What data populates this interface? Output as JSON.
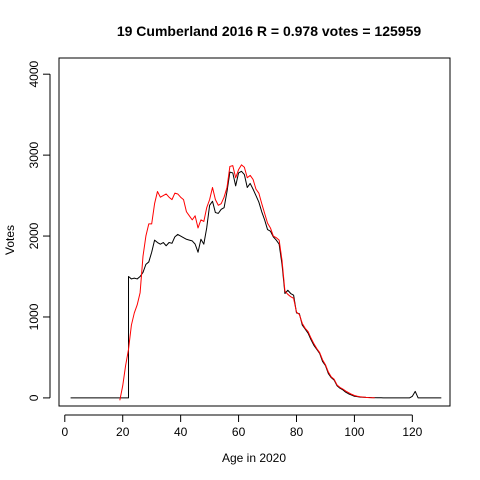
{
  "chart_data": {
    "type": "line",
    "title": "19 Cumberland 2016 R = 0.978 votes = 125959",
    "xlabel": "Age in 2020",
    "ylabel": "Votes",
    "xlim": [
      -2,
      133
    ],
    "ylim": [
      -100,
      4200
    ],
    "x_ticks": [
      0,
      20,
      40,
      60,
      80,
      100,
      120
    ],
    "y_ticks": [
      0,
      1000,
      2000,
      3000,
      4000
    ],
    "grid": false,
    "legend": "none",
    "series": [
      {
        "color": "#000000",
        "points": [
          [
            2,
            0
          ],
          [
            10,
            0
          ],
          [
            18,
            0
          ],
          [
            20,
            0
          ],
          [
            21,
            0
          ],
          [
            22,
            0
          ],
          [
            22,
            1500
          ],
          [
            23,
            1470
          ],
          [
            24,
            1480
          ],
          [
            25,
            1470
          ],
          [
            26,
            1500
          ],
          [
            27,
            1550
          ],
          [
            28,
            1650
          ],
          [
            29,
            1680
          ],
          [
            30,
            1800
          ],
          [
            31,
            1950
          ],
          [
            32,
            1920
          ],
          [
            33,
            1900
          ],
          [
            34,
            1920
          ],
          [
            35,
            1880
          ],
          [
            36,
            1920
          ],
          [
            37,
            1910
          ],
          [
            38,
            1990
          ],
          [
            39,
            2020
          ],
          [
            40,
            2000
          ],
          [
            41,
            1980
          ],
          [
            42,
            1960
          ],
          [
            43,
            1950
          ],
          [
            44,
            1940
          ],
          [
            45,
            1900
          ],
          [
            46,
            1800
          ],
          [
            47,
            1960
          ],
          [
            48,
            1900
          ],
          [
            49,
            2100
          ],
          [
            50,
            2380
          ],
          [
            51,
            2430
          ],
          [
            52,
            2290
          ],
          [
            53,
            2280
          ],
          [
            54,
            2330
          ],
          [
            55,
            2350
          ],
          [
            56,
            2550
          ],
          [
            57,
            2790
          ],
          [
            58,
            2780
          ],
          [
            59,
            2620
          ],
          [
            60,
            2780
          ],
          [
            61,
            2800
          ],
          [
            62,
            2760
          ],
          [
            63,
            2600
          ],
          [
            64,
            2650
          ],
          [
            65,
            2580
          ],
          [
            66,
            2500
          ],
          [
            67,
            2420
          ],
          [
            68,
            2300
          ],
          [
            69,
            2200
          ],
          [
            70,
            2080
          ],
          [
            71,
            2060
          ],
          [
            72,
            1990
          ],
          [
            73,
            1950
          ],
          [
            74,
            1900
          ],
          [
            75,
            1650
          ],
          [
            76,
            1290
          ],
          [
            77,
            1330
          ],
          [
            78,
            1290
          ],
          [
            79,
            1270
          ],
          [
            80,
            1050
          ],
          [
            81,
            1040
          ],
          [
            82,
            900
          ],
          [
            83,
            850
          ],
          [
            84,
            800
          ],
          [
            85,
            720
          ],
          [
            86,
            650
          ],
          [
            87,
            600
          ],
          [
            88,
            550
          ],
          [
            89,
            450
          ],
          [
            90,
            400
          ],
          [
            91,
            300
          ],
          [
            92,
            250
          ],
          [
            93,
            220
          ],
          [
            94,
            150
          ],
          [
            95,
            120
          ],
          [
            96,
            100
          ],
          [
            97,
            70
          ],
          [
            98,
            50
          ],
          [
            99,
            35
          ],
          [
            100,
            20
          ],
          [
            101,
            15
          ],
          [
            102,
            10
          ],
          [
            103,
            8
          ],
          [
            104,
            6
          ],
          [
            105,
            5
          ],
          [
            106,
            3
          ],
          [
            108,
            2
          ],
          [
            110,
            1
          ],
          [
            115,
            0
          ],
          [
            119,
            0
          ],
          [
            120,
            20
          ],
          [
            121,
            80
          ],
          [
            122,
            0
          ],
          [
            125,
            0
          ],
          [
            130,
            0
          ]
        ]
      },
      {
        "color": "#ff0000",
        "points": [
          [
            19,
            -30
          ],
          [
            20,
            150
          ],
          [
            21,
            400
          ],
          [
            22,
            600
          ],
          [
            23,
            900
          ],
          [
            24,
            1050
          ],
          [
            25,
            1150
          ],
          [
            26,
            1300
          ],
          [
            27,
            1750
          ],
          [
            28,
            2000
          ],
          [
            29,
            2150
          ],
          [
            30,
            2150
          ],
          [
            31,
            2400
          ],
          [
            32,
            2550
          ],
          [
            33,
            2480
          ],
          [
            34,
            2500
          ],
          [
            35,
            2520
          ],
          [
            36,
            2480
          ],
          [
            37,
            2450
          ],
          [
            38,
            2530
          ],
          [
            39,
            2520
          ],
          [
            40,
            2480
          ],
          [
            41,
            2450
          ],
          [
            42,
            2300
          ],
          [
            43,
            2250
          ],
          [
            44,
            2200
          ],
          [
            45,
            2250
          ],
          [
            46,
            2100
          ],
          [
            47,
            2200
          ],
          [
            48,
            2180
          ],
          [
            49,
            2350
          ],
          [
            50,
            2450
          ],
          [
            51,
            2600
          ],
          [
            52,
            2450
          ],
          [
            53,
            2380
          ],
          [
            54,
            2400
          ],
          [
            55,
            2480
          ],
          [
            56,
            2600
          ],
          [
            57,
            2860
          ],
          [
            58,
            2870
          ],
          [
            59,
            2720
          ],
          [
            60,
            2820
          ],
          [
            61,
            2880
          ],
          [
            62,
            2850
          ],
          [
            63,
            2720
          ],
          [
            64,
            2750
          ],
          [
            65,
            2700
          ],
          [
            66,
            2580
          ],
          [
            67,
            2530
          ],
          [
            68,
            2400
          ],
          [
            69,
            2280
          ],
          [
            70,
            2160
          ],
          [
            71,
            2100
          ],
          [
            72,
            2000
          ],
          [
            73,
            1980
          ],
          [
            74,
            1950
          ],
          [
            75,
            1700
          ],
          [
            76,
            1320
          ],
          [
            77,
            1280
          ],
          [
            78,
            1250
          ],
          [
            79,
            1230
          ],
          [
            80,
            1060
          ],
          [
            81,
            1030
          ],
          [
            82,
            920
          ],
          [
            83,
            860
          ],
          [
            84,
            820
          ],
          [
            85,
            740
          ],
          [
            86,
            670
          ],
          [
            87,
            610
          ],
          [
            88,
            560
          ],
          [
            89,
            470
          ],
          [
            90,
            410
          ],
          [
            91,
            320
          ],
          [
            92,
            260
          ],
          [
            93,
            230
          ],
          [
            94,
            160
          ],
          [
            95,
            130
          ],
          [
            96,
            110
          ],
          [
            97,
            85
          ],
          [
            98,
            65
          ],
          [
            99,
            45
          ],
          [
            100,
            30
          ],
          [
            101,
            20
          ],
          [
            102,
            14
          ],
          [
            103,
            10
          ],
          [
            104,
            6
          ],
          [
            105,
            4
          ],
          [
            107,
            2
          ]
        ]
      }
    ]
  }
}
